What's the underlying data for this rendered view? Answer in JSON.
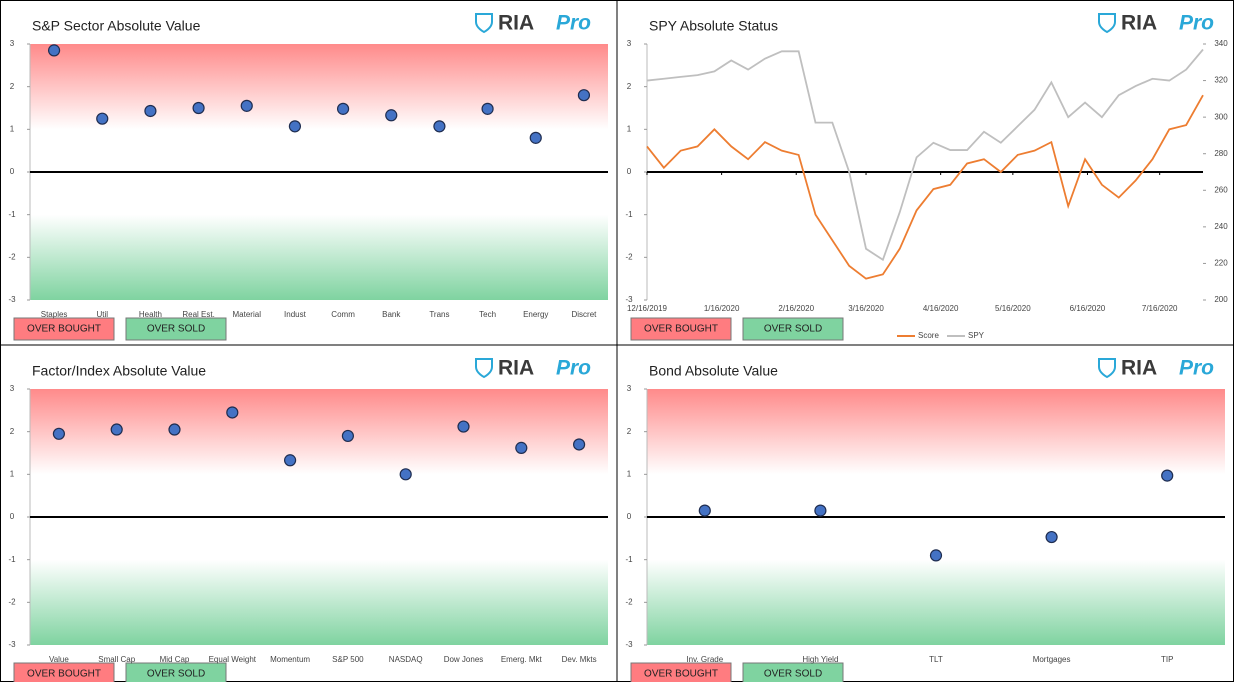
{
  "brand": {
    "name": "RIA",
    "tag": "Pro"
  },
  "zone_labels": [
    {
      "label": "OVER BOUGHT",
      "color": "#ff7c80"
    },
    {
      "label": "OVER SOLD",
      "color": "#7fd3a0"
    }
  ],
  "chart_data": [
    {
      "type": "dot",
      "title": "S&P Sector Absolute Value",
      "categories": [
        "Staples",
        "Util",
        "Health",
        "Real Est.",
        "Material",
        "Indust",
        "Comm",
        "Bank",
        "Trans",
        "Tech",
        "Energy",
        "Discret"
      ],
      "values": [
        2.85,
        1.25,
        1.43,
        1.5,
        1.55,
        1.07,
        1.48,
        1.33,
        1.07,
        1.48,
        0.8,
        1.8
      ],
      "color": "#4472c4",
      "ylim": [
        -3,
        3
      ],
      "yticks": [
        -3,
        -2,
        -1,
        0,
        1,
        2,
        3
      ]
    },
    {
      "type": "line",
      "title": "SPY Absolute Status",
      "x": [
        "12/16/2019",
        "12/23/2019",
        "12/30/2019",
        "1/6/2020",
        "1/13/2020",
        "1/20/2020",
        "1/27/2020",
        "2/3/2020",
        "2/10/2020",
        "2/17/2020",
        "2/24/2020",
        "3/2/2020",
        "3/9/2020",
        "3/16/2020",
        "3/23/2020",
        "3/30/2020",
        "4/6/2020",
        "4/13/2020",
        "4/20/2020",
        "4/27/2020",
        "5/4/2020",
        "5/11/2020",
        "5/18/2020",
        "5/25/2020",
        "6/1/2020",
        "6/8/2020",
        "6/15/2020",
        "6/22/2020",
        "6/29/2020",
        "7/6/2020",
        "7/13/2020",
        "7/20/2020",
        "7/27/2020",
        "8/3/2020"
      ],
      "series": [
        {
          "name": "Score",
          "color": "#ed7d31",
          "values": [
            0.6,
            0.1,
            0.5,
            0.6,
            1.0,
            0.6,
            0.3,
            0.7,
            0.5,
            0.4,
            -1.0,
            -1.6,
            -2.2,
            -2.5,
            -2.4,
            -1.8,
            -0.9,
            -0.4,
            -0.3,
            0.2,
            0.3,
            0.0,
            0.4,
            0.5,
            0.7,
            -0.8,
            0.3,
            -0.3,
            -0.6,
            -0.2,
            0.3,
            1.0,
            1.1,
            1.8
          ]
        },
        {
          "name": "SPY",
          "color": "#bfbfbf",
          "axis": "y2",
          "values": [
            320,
            321,
            322,
            323,
            325,
            331,
            326,
            332,
            336,
            336,
            297,
            297,
            270,
            228,
            222,
            248,
            278,
            286,
            282,
            282,
            292,
            286,
            295,
            304,
            319,
            300,
            308,
            300,
            312,
            317,
            321,
            320,
            326,
            337
          ]
        }
      ],
      "xlim": [
        "12/16/2019",
        "8/3/2020"
      ],
      "xticks": [
        "12/16/2019",
        "1/16/2020",
        "2/16/2020",
        "3/16/2020",
        "4/16/2020",
        "5/16/2020",
        "6/16/2020",
        "7/16/2020"
      ],
      "ylim": [
        -3,
        3
      ],
      "yticks": [
        -3,
        -2,
        -1,
        0,
        1,
        2,
        3
      ],
      "y2lim": [
        200,
        340
      ],
      "y2ticks": [
        200,
        220,
        240,
        260,
        280,
        300,
        320,
        340
      ]
    },
    {
      "type": "dot",
      "title": "Factor/Index Absolute Value",
      "categories": [
        "Value",
        "Small Cap",
        "Mid Cap",
        "Equal Weight",
        "Momentum",
        "S&P 500",
        "NASDAQ",
        "Dow Jones",
        "Emerg. Mkt",
        "Dev. Mkts"
      ],
      "values": [
        1.95,
        2.05,
        2.05,
        2.45,
        1.33,
        1.9,
        1.0,
        2.12,
        1.62,
        1.7
      ],
      "color": "#4472c4",
      "ylim": [
        -3,
        3
      ],
      "yticks": [
        -3,
        -2,
        -1,
        0,
        1,
        2,
        3
      ]
    },
    {
      "type": "dot",
      "title": "Bond Absolute Value",
      "categories": [
        "Inv. Grade",
        "High Yield",
        "TLT",
        "Mortgages",
        "TIP"
      ],
      "values": [
        0.15,
        0.15,
        -0.9,
        -0.47,
        0.97
      ],
      "color": "#4472c4",
      "ylim": [
        -3,
        3
      ],
      "yticks": [
        -3,
        -2,
        -1,
        0,
        1,
        2,
        3
      ]
    }
  ]
}
